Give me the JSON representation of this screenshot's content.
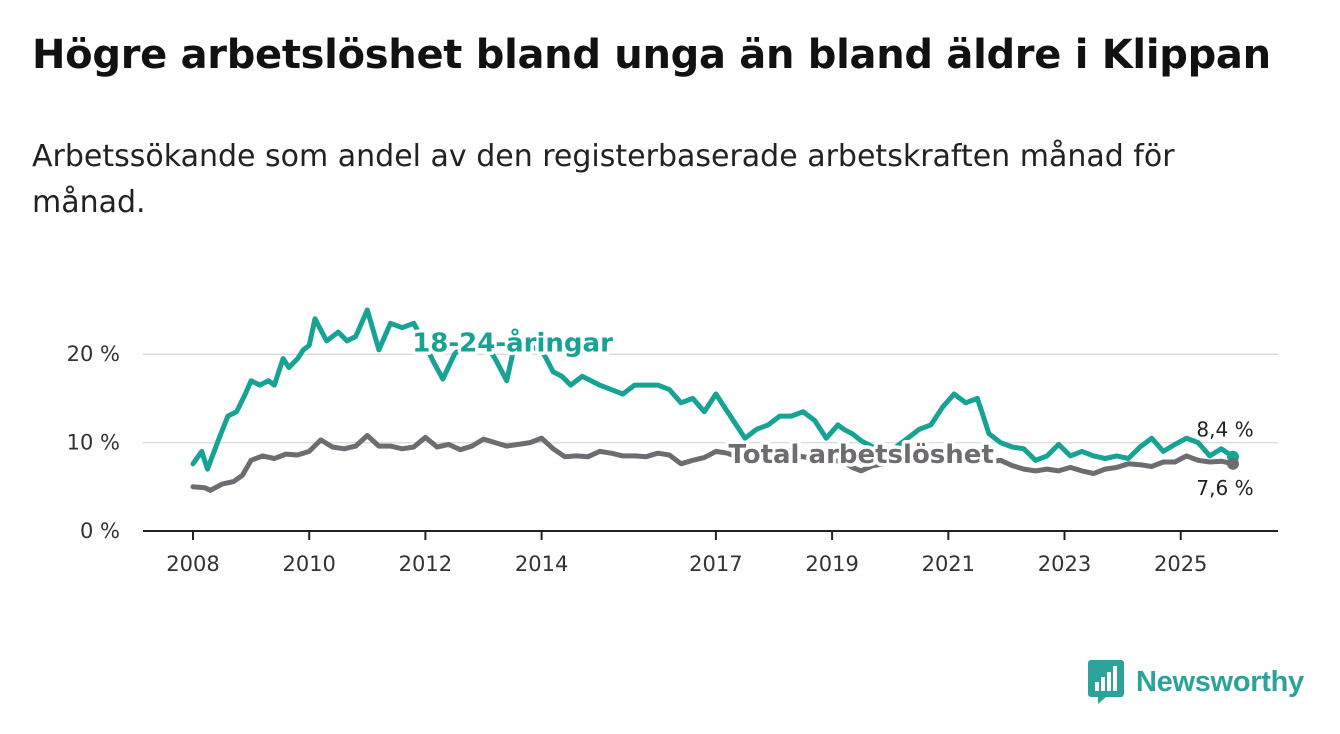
{
  "title": "Högre arbetslöshet bland unga än bland äldre i Klippan",
  "subtitle": "Arbetssökande som andel av den registerbaserade arbetskraften månad för månad.",
  "brand": {
    "name": "Newsworthy",
    "icon": "newsworthy-logo-icon",
    "color": "#2ba39b"
  },
  "chart_data": {
    "type": "line",
    "title": "Högre arbetslöshet bland unga än bland äldre i Klippan",
    "xlabel": "",
    "ylabel": "",
    "xlim": [
      2008,
      2025.9
    ],
    "ylim": [
      0,
      25
    ],
    "grid": true,
    "x_ticks": [
      {
        "value": 2008,
        "label": "2008"
      },
      {
        "value": 2010,
        "label": "2010"
      },
      {
        "value": 2012,
        "label": "2012"
      },
      {
        "value": 2014,
        "label": "2014"
      },
      {
        "value": 2017,
        "label": "2017"
      },
      {
        "value": 2019,
        "label": "2019"
      },
      {
        "value": 2021,
        "label": "2021"
      },
      {
        "value": 2023,
        "label": "2023"
      },
      {
        "value": 2025,
        "label": "2025"
      }
    ],
    "y_ticks": [
      {
        "value": 0,
        "label": "0 %"
      },
      {
        "value": 10,
        "label": "10 %"
      },
      {
        "value": 20,
        "label": "20 %"
      }
    ],
    "series": [
      {
        "name": "18-24-åringar",
        "color": "#16a394",
        "end_label": "8,4 %",
        "x": [
          2008.0,
          2008.15,
          2008.25,
          2008.45,
          2008.6,
          2008.75,
          2008.9,
          2009.0,
          2009.15,
          2009.3,
          2009.4,
          2009.55,
          2009.65,
          2009.8,
          2009.9,
          2010.0,
          2010.1,
          2010.3,
          2010.5,
          2010.65,
          2010.8,
          2011.0,
          2011.2,
          2011.4,
          2011.6,
          2011.8,
          2012.0,
          2012.15,
          2012.3,
          2012.5,
          2012.65,
          2012.8,
          2013.0,
          2013.2,
          2013.4,
          2013.55,
          2013.7,
          2014.0,
          2014.2,
          2014.35,
          2014.5,
          2014.7,
          2015.0,
          2015.2,
          2015.4,
          2015.6,
          2015.8,
          2016.0,
          2016.2,
          2016.4,
          2016.6,
          2016.8,
          2017.0,
          2017.2,
          2017.35,
          2017.5,
          2017.7,
          2017.9,
          2018.1,
          2018.3,
          2018.5,
          2018.7,
          2018.9,
          2019.1,
          2019.2,
          2019.35,
          2019.5,
          2019.7,
          2019.9,
          2020.1,
          2020.3,
          2020.5,
          2020.7,
          2020.9,
          2021.1,
          2021.3,
          2021.5,
          2021.7,
          2021.9,
          2022.1,
          2022.3,
          2022.5,
          2022.7,
          2022.9,
          2023.1,
          2023.3,
          2023.5,
          2023.7,
          2023.9,
          2024.1,
          2024.3,
          2024.5,
          2024.7,
          2024.9,
          2025.1,
          2025.3,
          2025.5,
          2025.7,
          2025.9
        ],
        "y": [
          7.6,
          9.0,
          7.0,
          10.5,
          13.0,
          13.5,
          15.5,
          17.0,
          16.5,
          17.0,
          16.5,
          19.5,
          18.5,
          19.5,
          20.5,
          21.0,
          24.0,
          21.5,
          22.5,
          21.5,
          22.0,
          25.0,
          20.5,
          23.5,
          23.0,
          23.5,
          21.0,
          19.0,
          17.2,
          20.0,
          21.0,
          21.0,
          21.5,
          19.5,
          17.0,
          21.5,
          21.0,
          20.5,
          18.0,
          17.5,
          16.5,
          17.5,
          16.5,
          16.0,
          15.5,
          16.5,
          16.5,
          16.5,
          16.0,
          14.5,
          15.0,
          13.5,
          15.5,
          13.5,
          12.0,
          10.5,
          11.5,
          12.0,
          13.0,
          13.0,
          13.5,
          12.5,
          10.5,
          12.0,
          11.5,
          11.0,
          10.2,
          9.5,
          8.5,
          9.5,
          10.5,
          11.5,
          12.0,
          14.0,
          15.5,
          14.5,
          15.0,
          11.0,
          10.0,
          9.5,
          9.3,
          8.0,
          8.5,
          9.8,
          8.5,
          9.0,
          8.5,
          8.2,
          8.5,
          8.2,
          9.5,
          10.5,
          9.0,
          9.8,
          10.5,
          10.0,
          8.5,
          9.3,
          8.4
        ]
      },
      {
        "name": "Total arbetslöshet",
        "color": "#6e6c70",
        "end_label": "7,6 %",
        "x": [
          2008.0,
          2008.2,
          2008.3,
          2008.5,
          2008.7,
          2008.85,
          2009.0,
          2009.2,
          2009.4,
          2009.6,
          2009.8,
          2010.0,
          2010.2,
          2010.4,
          2010.6,
          2010.8,
          2011.0,
          2011.2,
          2011.4,
          2011.6,
          2011.8,
          2012.0,
          2012.2,
          2012.4,
          2012.6,
          2012.8,
          2013.0,
          2013.2,
          2013.4,
          2013.6,
          2013.8,
          2014.0,
          2014.2,
          2014.4,
          2014.6,
          2014.8,
          2015.0,
          2015.2,
          2015.4,
          2015.6,
          2015.8,
          2016.0,
          2016.2,
          2016.4,
          2016.6,
          2016.8,
          2017.0,
          2017.2,
          2017.4,
          2017.6,
          2017.8,
          2018.0,
          2018.2,
          2018.4,
          2018.6,
          2018.8,
          2019.0,
          2019.2,
          2019.35,
          2019.5,
          2019.7,
          2019.9,
          2020.1,
          2020.3,
          2020.5,
          2020.7,
          2020.9,
          2021.1,
          2021.3,
          2021.5,
          2021.7,
          2021.9,
          2022.1,
          2022.3,
          2022.5,
          2022.7,
          2022.9,
          2023.1,
          2023.3,
          2023.5,
          2023.7,
          2023.9,
          2024.1,
          2024.3,
          2024.5,
          2024.7,
          2024.9,
          2025.1,
          2025.3,
          2025.5,
          2025.7,
          2025.9
        ],
        "y": [
          5.0,
          4.9,
          4.6,
          5.3,
          5.6,
          6.3,
          8.0,
          8.5,
          8.2,
          8.7,
          8.6,
          9.0,
          10.3,
          9.5,
          9.3,
          9.6,
          10.8,
          9.6,
          9.6,
          9.3,
          9.5,
          10.6,
          9.5,
          9.8,
          9.2,
          9.6,
          10.4,
          10.0,
          9.6,
          9.8,
          10.0,
          10.5,
          9.3,
          8.4,
          8.5,
          8.4,
          9.0,
          8.8,
          8.5,
          8.5,
          8.4,
          8.8,
          8.6,
          7.6,
          8.0,
          8.3,
          9.0,
          8.8,
          8.3,
          8.5,
          8.6,
          8.5,
          8.5,
          8.5,
          8.3,
          8.2,
          8.0,
          7.8,
          7.2,
          6.8,
          7.4,
          7.6,
          8.2,
          8.3,
          8.0,
          8.4,
          8.6,
          8.7,
          8.3,
          8.0,
          7.8,
          8.0,
          7.4,
          7.0,
          6.8,
          7.0,
          6.8,
          7.2,
          6.8,
          6.5,
          7.0,
          7.2,
          7.6,
          7.5,
          7.3,
          7.8,
          7.8,
          8.5,
          8.0,
          7.8,
          7.9,
          7.6
        ]
      }
    ],
    "annotations": [
      {
        "text": "18-24-åringar",
        "series": "18-24-åringar",
        "x": 2013.5,
        "y": 21.3
      },
      {
        "text": "Total arbetslöshet",
        "series": "Total arbetslöshet",
        "x": 2019.5,
        "y": 8.7
      }
    ]
  }
}
